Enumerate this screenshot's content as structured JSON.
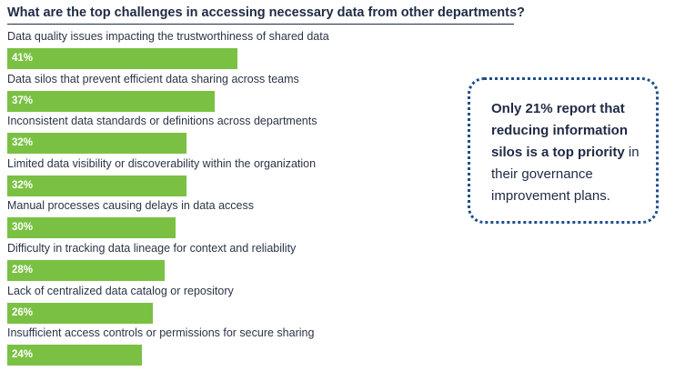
{
  "chart_data": {
    "type": "bar",
    "orientation": "horizontal",
    "title": "What are the top challenges  in accessing necessary data from other departments?",
    "categories": [
      "Data quality issues impacting the trustworthiness of shared data",
      "Data silos that prevent efficient data sharing across teams",
      "Inconsistent data standards or definitions across departments",
      "Limited data visibility or discoverability within the organization",
      "Manual processes causing delays in data access",
      "Difficulty in tracking data lineage for context and reliability",
      "Lack of centralized data catalog or repository",
      "Insufficient access controls or permissions for secure sharing"
    ],
    "values": [
      41,
      37,
      32,
      32,
      30,
      28,
      26,
      24
    ],
    "value_labels": [
      "41%",
      "37%",
      "32%",
      "32%",
      "30%",
      "28%",
      "26%",
      "24%"
    ],
    "unit": "%",
    "xlabel": "",
    "ylabel": "",
    "xlim": [
      0,
      41
    ],
    "grid": false,
    "bar_color": "#7ac143"
  },
  "callout": {
    "strong_text": "Only 21% report that reducing information silos is a top priority",
    "rest_text": " in their governance improvement plans.",
    "border_color": "#1e4f8c"
  },
  "colors": {
    "title": "#1f2a44",
    "bar": "#7ac143",
    "bar_label": "#ffffff"
  }
}
